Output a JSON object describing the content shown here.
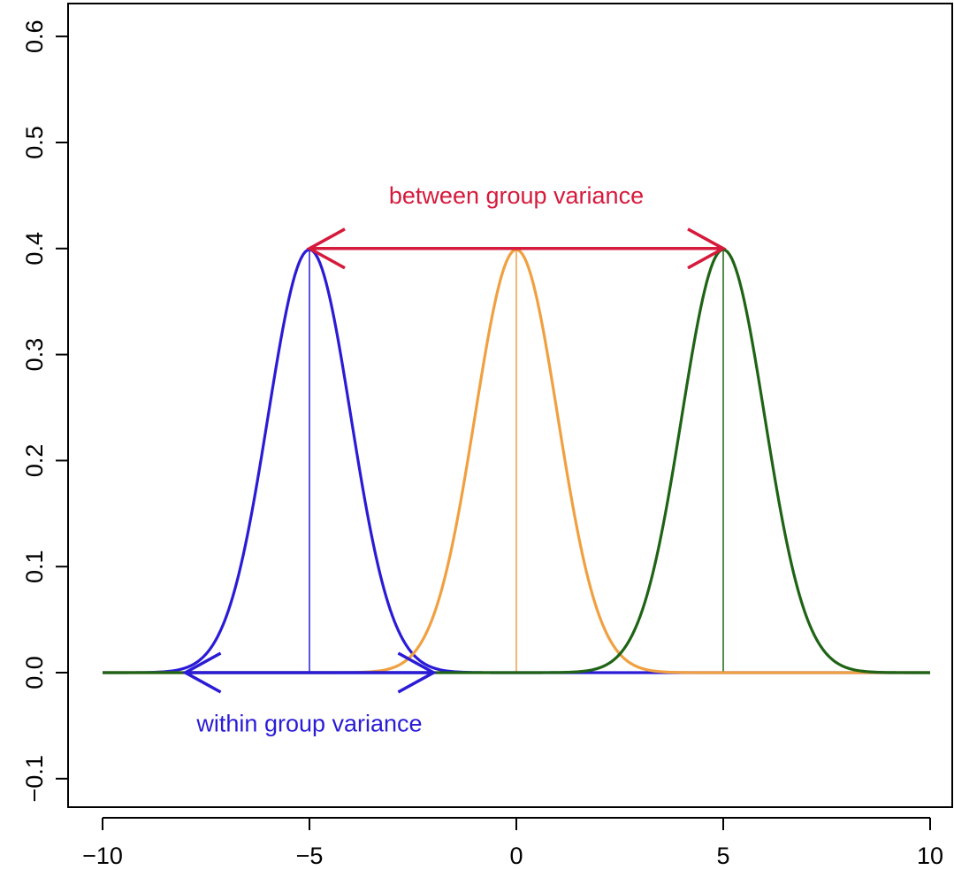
{
  "chart_data": {
    "type": "line",
    "title": "",
    "xlabel": "",
    "ylabel": "",
    "xlim": [
      -10,
      10
    ],
    "ylim": [
      -0.1,
      0.6
    ],
    "x_ticks": [
      "-10",
      "-5",
      "0",
      "5",
      "10"
    ],
    "y_ticks": [
      "-0.1",
      "0.0",
      "0.1",
      "0.2",
      "0.3",
      "0.4",
      "0.5",
      "0.6"
    ],
    "x_tick_values": [
      -10,
      -5,
      0,
      5,
      10
    ],
    "y_tick_values": [
      -0.1,
      0.0,
      0.1,
      0.2,
      0.3,
      0.4,
      0.5,
      0.6
    ],
    "grid": false,
    "legend": "none",
    "series": [
      {
        "distribution": "normal",
        "mean": -5,
        "sd": 1,
        "color": "#2a1bd6"
      },
      {
        "distribution": "normal",
        "mean": 0,
        "sd": 1,
        "color": "#f0a040"
      },
      {
        "distribution": "normal",
        "mean": 5,
        "sd": 1,
        "color": "#1e6414"
      }
    ],
    "mean_lines": [
      {
        "x": -5,
        "y_top": 0.399,
        "color": "#2a1bd6"
      },
      {
        "x": 0,
        "y_top": 0.399,
        "color": "#f0a040"
      },
      {
        "x": 5,
        "y_top": 0.399,
        "color": "#1e6414"
      }
    ],
    "annotations": [
      {
        "text": "between group variance",
        "color": "#d61a3c",
        "arrow_from": [
          -5,
          0.4
        ],
        "arrow_to": [
          5,
          0.4
        ],
        "text_at": [
          0,
          0.45
        ]
      },
      {
        "text": "within group variance",
        "color": "#2a1bd6",
        "arrow_from": [
          -8,
          0.0
        ],
        "arrow_to": [
          -2,
          0.0
        ],
        "text_at": [
          -5,
          -0.048
        ]
      }
    ]
  }
}
